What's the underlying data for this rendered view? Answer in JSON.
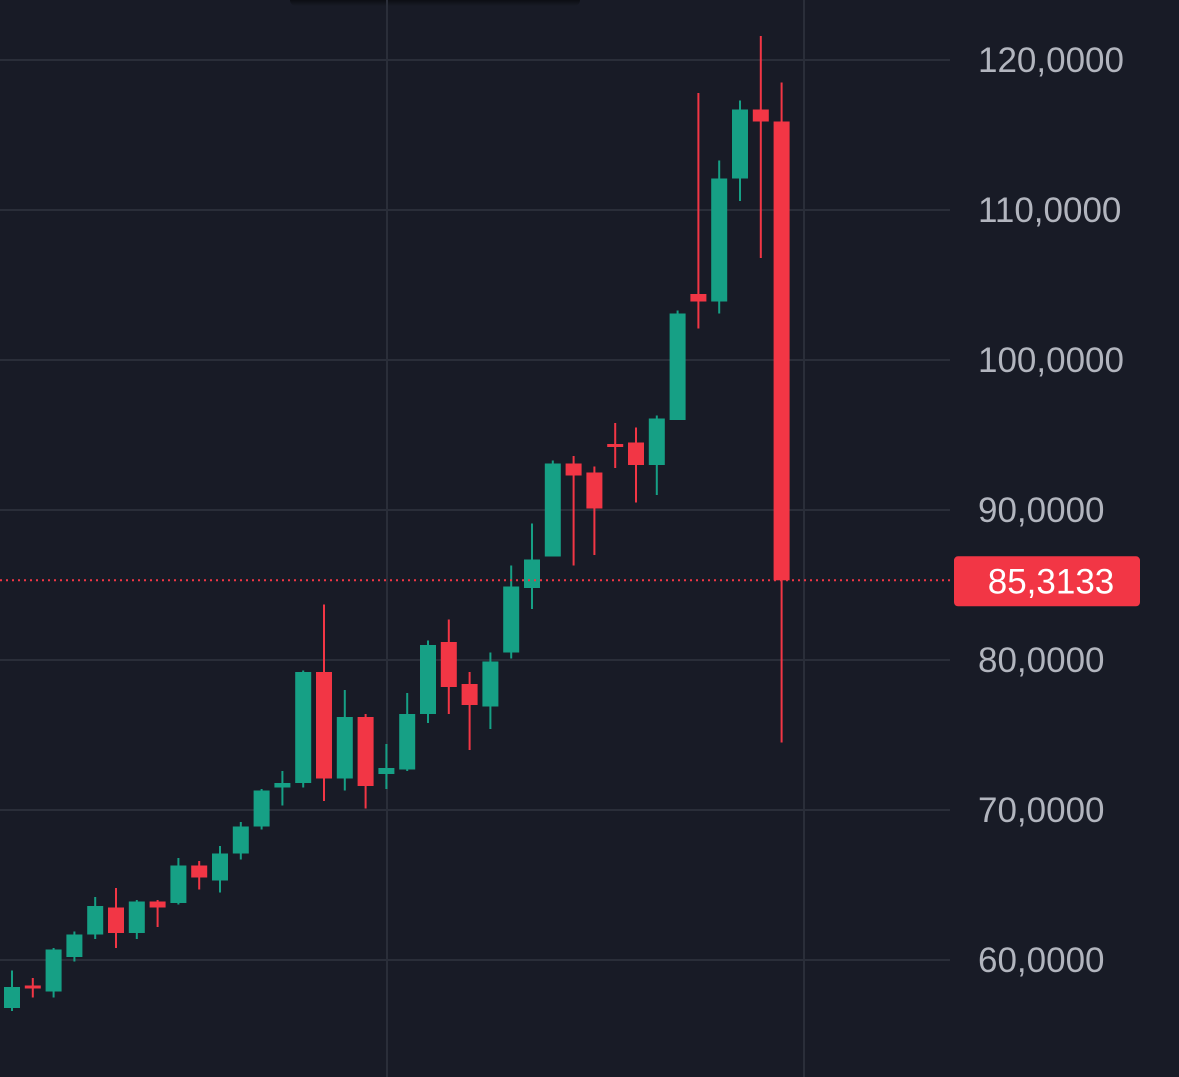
{
  "theme": {
    "background": "#181b26",
    "grid": "#2a2e39",
    "up": "#16a085",
    "down": "#f23645",
    "axis_text": "#b2b5be",
    "price_badge_text": "#ffffff"
  },
  "chart_data": {
    "type": "candlestick",
    "ylim": [
      55000,
      126000
    ],
    "grid": true,
    "y_ticks": [
      {
        "value": 120000,
        "label": "120,0000"
      },
      {
        "value": 110000,
        "label": "110,0000"
      },
      {
        "value": 100000,
        "label": "100,0000"
      },
      {
        "value": 90000,
        "label": "90,0000"
      },
      {
        "value": 80000,
        "label": "80,0000"
      },
      {
        "value": 70000,
        "label": "70,0000"
      },
      {
        "value": 60000,
        "label": "60,0000"
      }
    ],
    "current_price": {
      "value": 85313,
      "label": "85,3133"
    },
    "candles": [
      {
        "o": 56800,
        "h": 59300,
        "l": 56600,
        "c": 58200
      },
      {
        "o": 58300,
        "h": 58800,
        "l": 57500,
        "c": 58100
      },
      {
        "o": 57900,
        "h": 60800,
        "l": 57500,
        "c": 60700
      },
      {
        "o": 60200,
        "h": 61900,
        "l": 59900,
        "c": 61700
      },
      {
        "o": 61700,
        "h": 64200,
        "l": 61400,
        "c": 63600
      },
      {
        "o": 63500,
        "h": 64800,
        "l": 60800,
        "c": 61800
      },
      {
        "o": 61800,
        "h": 64000,
        "l": 61400,
        "c": 63900
      },
      {
        "o": 63900,
        "h": 64000,
        "l": 62200,
        "c": 63500
      },
      {
        "o": 63800,
        "h": 66800,
        "l": 63700,
        "c": 66300
      },
      {
        "o": 66300,
        "h": 66600,
        "l": 64700,
        "c": 65500
      },
      {
        "o": 65300,
        "h": 67600,
        "l": 64500,
        "c": 67100
      },
      {
        "o": 67100,
        "h": 69200,
        "l": 66700,
        "c": 68900
      },
      {
        "o": 68900,
        "h": 71400,
        "l": 68700,
        "c": 71300
      },
      {
        "o": 71500,
        "h": 72600,
        "l": 70300,
        "c": 71800
      },
      {
        "o": 71800,
        "h": 79300,
        "l": 71500,
        "c": 79200
      },
      {
        "o": 79200,
        "h": 83700,
        "l": 70600,
        "c": 72100
      },
      {
        "o": 72100,
        "h": 78000,
        "l": 71300,
        "c": 76200
      },
      {
        "o": 76200,
        "h": 76400,
        "l": 70100,
        "c": 71600
      },
      {
        "o": 72400,
        "h": 74400,
        "l": 71400,
        "c": 72800
      },
      {
        "o": 72700,
        "h": 77800,
        "l": 72600,
        "c": 76400
      },
      {
        "o": 76400,
        "h": 81300,
        "l": 75800,
        "c": 81000
      },
      {
        "o": 81200,
        "h": 82700,
        "l": 76400,
        "c": 78200
      },
      {
        "o": 78400,
        "h": 79200,
        "l": 74000,
        "c": 77000
      },
      {
        "o": 76900,
        "h": 80500,
        "l": 75400,
        "c": 79900
      },
      {
        "o": 80500,
        "h": 86300,
        "l": 80100,
        "c": 84900
      },
      {
        "o": 84800,
        "h": 89100,
        "l": 83400,
        "c": 86700
      },
      {
        "o": 86900,
        "h": 93300,
        "l": 86900,
        "c": 93100
      },
      {
        "o": 93100,
        "h": 93600,
        "l": 86300,
        "c": 92300
      },
      {
        "o": 92500,
        "h": 92900,
        "l": 87000,
        "c": 90100
      },
      {
        "o": 94400,
        "h": 95800,
        "l": 92800,
        "c": 94300
      },
      {
        "o": 94500,
        "h": 95500,
        "l": 90500,
        "c": 93000
      },
      {
        "o": 93000,
        "h": 96300,
        "l": 91000,
        "c": 96100
      },
      {
        "o": 96000,
        "h": 103300,
        "l": 96000,
        "c": 103100
      },
      {
        "o": 104400,
        "h": 117800,
        "l": 102100,
        "c": 103900
      },
      {
        "o": 103900,
        "h": 113300,
        "l": 103100,
        "c": 112100
      },
      {
        "o": 112100,
        "h": 117300,
        "l": 110600,
        "c": 116700
      },
      {
        "o": 116700,
        "h": 121600,
        "l": 106800,
        "c": 115900
      },
      {
        "o": 115900,
        "h": 118500,
        "l": 74500,
        "c": 85313
      }
    ]
  }
}
